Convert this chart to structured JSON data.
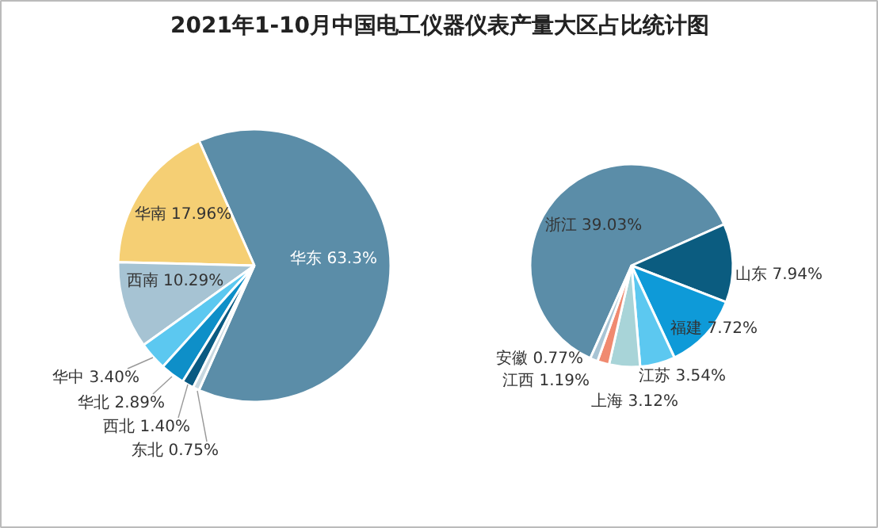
{
  "chart_data": [
    {
      "type": "pie",
      "title": "2021年1-10月中国电工仪器仪表产量大区占比统计图",
      "categories": [
        "华东",
        "华南",
        "西南",
        "华中",
        "华北",
        "西北",
        "东北"
      ],
      "values": [
        63.3,
        17.96,
        10.29,
        3.4,
        2.89,
        1.4,
        0.75
      ],
      "value_labels": [
        "63.3%",
        "17.96%",
        "10.29%",
        "3.40%",
        "2.89%",
        "1.40%",
        "0.75%"
      ],
      "colors": [
        "#5b8da8",
        "#f5cf74",
        "#a6c3d3",
        "#5cc8f0",
        "#0e8fc8",
        "#0a5a82",
        "#c8d8e0"
      ]
    },
    {
      "type": "pie",
      "categories": [
        "浙江",
        "山东",
        "福建",
        "江苏",
        "上海",
        "江西",
        "安徽"
      ],
      "values": [
        39.03,
        7.94,
        7.72,
        3.54,
        3.12,
        1.19,
        0.77
      ],
      "value_labels": [
        "39.03%",
        "7.94%",
        "7.72%",
        "3.54%",
        "3.12%",
        "1.19%",
        "0.77%"
      ],
      "colors": [
        "#5b8da8",
        "#0b5c80",
        "#0e9ad8",
        "#5cc8f0",
        "#a8d4d8",
        "#f08a70",
        "#a8c4d4"
      ]
    }
  ]
}
